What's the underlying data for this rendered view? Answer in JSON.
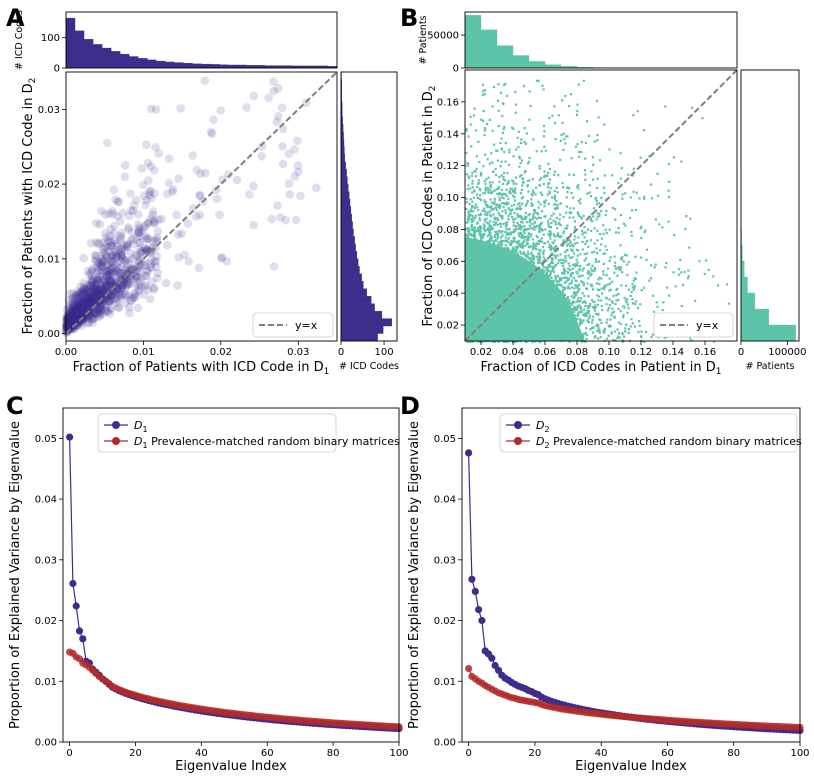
{
  "colors": {
    "purple": "#3f2d8c",
    "teal": "#5cc4a8",
    "red": "#b22a2a",
    "diag": "#7f7f7f"
  },
  "panels": {
    "a": "A",
    "b": "B",
    "c": "C",
    "d": "D"
  },
  "chart_data": [
    {
      "id": "A",
      "type": "scatter",
      "xlabel": "Fraction of Patients with ICD Code in D",
      "xlabel_sub": "1",
      "ylabel": "Fraction of Patients with ICD Code in D",
      "ylabel_sub": "2",
      "xlim": [
        0,
        0.035
      ],
      "ylim": [
        -0.001,
        0.035
      ],
      "xticks": [
        0.0,
        0.01,
        0.02,
        0.03
      ],
      "xtick_labels": [
        "0.00",
        "0.01",
        "0.02",
        "0.03"
      ],
      "yticks": [
        0.0,
        0.01,
        0.02,
        0.03
      ],
      "ytick_labels": [
        "0.00",
        "0.01",
        "0.02",
        "0.03"
      ],
      "legend": {
        "label": "y=x",
        "placement": "bottom-right"
      },
      "top_hist": {
        "ylabel": "# ICD Codes",
        "ylim": [
          0,
          185
        ],
        "yticks": [
          0,
          100
        ],
        "ytick_labels": [
          "0",
          "100"
        ],
        "values": [
          165,
          123,
          95,
          78,
          66,
          55,
          46,
          38,
          32,
          27,
          23,
          20,
          18,
          16,
          14,
          13,
          12,
          11,
          10,
          10,
          9,
          9,
          8,
          8,
          8,
          7,
          7,
          7,
          7,
          6
        ]
      },
      "right_hist": {
        "xlabel": "# ICD Codes",
        "xlim": [
          0,
          130
        ],
        "xticks": [
          0,
          100
        ],
        "xtick_labels": [
          "0",
          "100"
        ],
        "values": [
          85,
          98,
          118,
          95,
          78,
          70,
          60,
          52,
          48,
          43,
          40,
          37,
          34,
          32,
          29,
          27,
          25,
          23,
          21,
          19,
          17,
          15,
          13,
          11,
          9,
          8,
          7,
          6,
          5,
          4,
          3,
          3,
          2,
          2,
          2,
          1
        ]
      }
    },
    {
      "id": "B",
      "type": "scatter",
      "xlabel": "Fraction of ICD Codes in Patient in D",
      "xlabel_sub": "1",
      "ylabel": "Fraction of ICD Codes in Patient in D",
      "ylabel_sub": "2",
      "xlim": [
        0.01,
        0.18
      ],
      "ylim": [
        0.01,
        0.18
      ],
      "xticks": [
        0.02,
        0.04,
        0.06,
        0.08,
        0.1,
        0.12,
        0.14,
        0.16
      ],
      "xtick_labels": [
        "0.02",
        "0.04",
        "0.06",
        "0.08",
        "0.10",
        "0.12",
        "0.14",
        "0.16"
      ],
      "yticks": [
        0.02,
        0.04,
        0.06,
        0.08,
        0.1,
        0.12,
        0.14,
        0.16
      ],
      "ytick_labels": [
        "0.02",
        "0.04",
        "0.06",
        "0.08",
        "0.10",
        "0.12",
        "0.14",
        "0.16"
      ],
      "legend": {
        "label": "y=x",
        "placement": "bottom-right"
      },
      "top_hist": {
        "ylabel": "# Patients",
        "ylim": [
          0,
          85000
        ],
        "yticks": [
          0,
          50000
        ],
        "ytick_labels": [
          "0",
          "50000"
        ],
        "values": [
          80000,
          58000,
          34000,
          19000,
          10000,
          5000,
          2500,
          1200,
          500,
          200,
          80,
          30
        ]
      },
      "right_hist": {
        "xlabel": "# Patients",
        "xlim": [
          0,
          125000
        ],
        "xticks": [
          0,
          100000
        ],
        "xtick_labels": [
          "0",
          "100000"
        ],
        "values": [
          118000,
          60000,
          30000,
          14000,
          7000,
          3000,
          1200,
          500,
          200,
          80,
          30
        ]
      }
    },
    {
      "id": "C",
      "type": "line",
      "xlabel": "Eigenvalue Index",
      "ylabel": "Proportion of Explained Variance by Eigenvalue",
      "xlim": [
        -2,
        100
      ],
      "ylim": [
        0,
        0.055
      ],
      "xticks": [
        0,
        20,
        40,
        60,
        80,
        100
      ],
      "xtick_labels": [
        "0",
        "20",
        "40",
        "60",
        "80",
        "100"
      ],
      "yticks": [
        0.0,
        0.01,
        0.02,
        0.03,
        0.04,
        0.05
      ],
      "ytick_labels": [
        "0.00",
        "0.01",
        "0.02",
        "0.03",
        "0.04",
        "0.05"
      ],
      "legend_placement": "top-left",
      "series": [
        {
          "name": "D",
          "sub": "1",
          "suffix": "",
          "color": "#3f2d8c",
          "head": [
            0.0502,
            0.0261,
            0.0224,
            0.0183,
            0.017,
            0.0133,
            0.013,
            0.012,
            0.0115,
            0.011,
            0.0104,
            0.01,
            0.0095
          ],
          "tail_start": 0.0095,
          "tail_end": 0.0022
        },
        {
          "name": "D",
          "sub": "1",
          "suffix": " Prevalence-matched random binary matrices",
          "color": "#b22a2a",
          "head": [
            0.0148,
            0.0146,
            0.014,
            0.0137,
            0.013,
            0.0127,
            0.0123,
            0.0118,
            0.0113,
            0.0108,
            0.0104,
            0.01,
            0.0096
          ],
          "tail_start": 0.0096,
          "tail_end": 0.0025
        }
      ]
    },
    {
      "id": "D",
      "type": "line",
      "xlabel": "Eigenvalue Index",
      "ylabel": "Proportion of Explained Variance by Eigenvalue",
      "xlim": [
        -2,
        100
      ],
      "ylim": [
        0,
        0.055
      ],
      "xticks": [
        0,
        20,
        40,
        60,
        80,
        100
      ],
      "xtick_labels": [
        "0",
        "20",
        "40",
        "60",
        "80",
        "100"
      ],
      "yticks": [
        0.0,
        0.01,
        0.02,
        0.03,
        0.04,
        0.05
      ],
      "ytick_labels": [
        "0.00",
        "0.01",
        "0.02",
        "0.03",
        "0.04",
        "0.05"
      ],
      "legend_placement": "top-left",
      "series": [
        {
          "name": "D",
          "sub": "2",
          "suffix": "",
          "color": "#3f2d8c",
          "head": [
            0.0476,
            0.0268,
            0.0248,
            0.0218,
            0.02,
            0.015,
            0.0145,
            0.0138,
            0.0126,
            0.0118,
            0.011,
            0.0105,
            0.0102,
            0.0098,
            0.0095,
            0.0092,
            0.009,
            0.0088,
            0.0085,
            0.0083,
            0.008,
            0.0078
          ],
          "tail_start": 0.0078,
          "tail_end": 0.0019
        },
        {
          "name": "D",
          "sub": "2",
          "suffix": " Prevalence-matched random binary matrices",
          "color": "#b22a2a",
          "head": [
            0.0121,
            0.0108,
            0.0104,
            0.01,
            0.0097,
            0.0093,
            0.009,
            0.0087,
            0.0084,
            0.0081,
            0.0079,
            0.0077,
            0.0075,
            0.0073,
            0.0072,
            0.007,
            0.0069,
            0.0068,
            0.0067,
            0.0066,
            0.0065,
            0.0064
          ],
          "tail_start": 0.0064,
          "tail_end": 0.0024
        }
      ]
    }
  ]
}
